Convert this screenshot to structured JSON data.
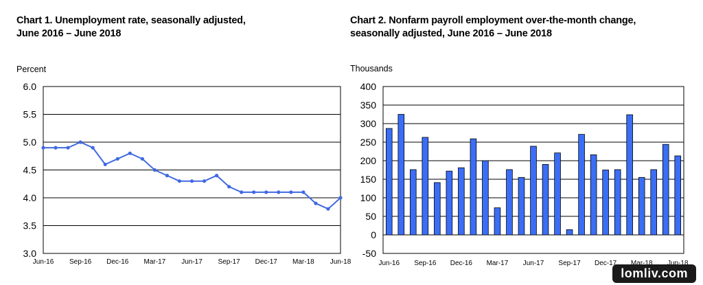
{
  "chart_data": [
    {
      "type": "line",
      "title_line1": "Chart 1. Unemployment rate, seasonally adjusted,",
      "title_line2": "June 2016 – June 2018",
      "ylabel": "Percent",
      "xlabel": "",
      "ylim": [
        3.0,
        6.0
      ],
      "yticks": [
        "3.0",
        "3.5",
        "4.0",
        "4.5",
        "5.0",
        "5.5",
        "6.0"
      ],
      "xtick_labels": [
        "Jun-16",
        "Sep-16",
        "Dec-16",
        "Mar-17",
        "Jun-17",
        "Sep-17",
        "Dec-17",
        "Mar-18",
        "Jun-18"
      ],
      "grid": true,
      "color": "#4169e1",
      "values": [
        4.9,
        4.9,
        4.9,
        5.0,
        4.9,
        4.6,
        4.7,
        4.8,
        4.7,
        4.5,
        4.4,
        4.3,
        4.3,
        4.3,
        4.4,
        4.2,
        4.1,
        4.1,
        4.1,
        4.1,
        4.1,
        4.1,
        3.9,
        3.8,
        4.0
      ]
    },
    {
      "type": "bar",
      "title_line1": "Chart 2. Nonfarm payroll employment over-the-month change,",
      "title_line2": "seasonally adjusted, June 2016 – June 2018",
      "ylabel": "Thousands",
      "xlabel": "",
      "ylim": [
        -50,
        400
      ],
      "yticks": [
        "-50",
        "0",
        "50",
        "100",
        "150",
        "200",
        "250",
        "300",
        "350",
        "400"
      ],
      "xtick_labels": [
        "Jun-16",
        "Sep-16",
        "Dec-16",
        "Mar-17",
        "Jun-17",
        "Sep-17",
        "Dec-17",
        "Mar-18",
        "Jun-18"
      ],
      "grid": true,
      "color": "#3b6ef5",
      "values": [
        287,
        325,
        176,
        263,
        141,
        172,
        181,
        259,
        200,
        73,
        176,
        155,
        239,
        190,
        221,
        14,
        271,
        216,
        175,
        176,
        324,
        155,
        176,
        244,
        213
      ]
    }
  ],
  "watermark": "lomliv.com"
}
